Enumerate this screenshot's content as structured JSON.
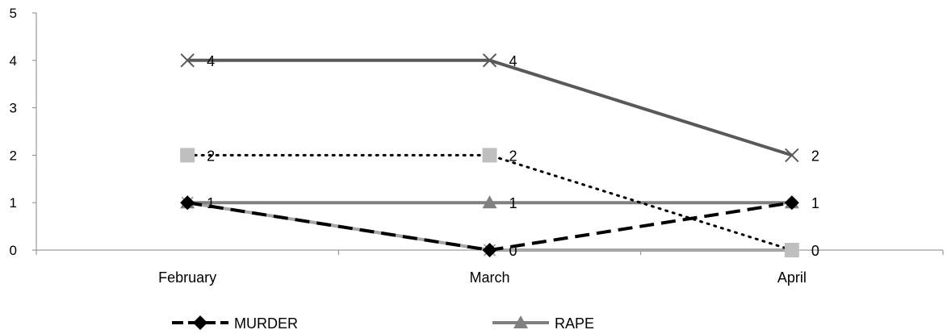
{
  "chart_data": {
    "type": "line",
    "title": "",
    "xlabel": "",
    "ylabel": "",
    "categories": [
      "February",
      "March",
      "April"
    ],
    "ylim": [
      0,
      5
    ],
    "yticks": [
      "0",
      "1",
      "2",
      "3",
      "4",
      "5"
    ],
    "grid": false,
    "legend_position": "bottom",
    "series": [
      {
        "name": "MURDER",
        "values": [
          1,
          0,
          1
        ],
        "color": "#000000",
        "line_style": "dashed",
        "marker": "diamond",
        "labels": [
          "",
          "",
          ""
        ]
      },
      {
        "name": "RAPE",
        "values": [
          1,
          1,
          1
        ],
        "color": "#808080",
        "line_style": "solid",
        "marker": "triangle",
        "labels": [
          "1",
          "1",
          "1"
        ]
      },
      {
        "values": [
          2,
          2,
          0
        ],
        "color": "#000000",
        "marker_color": "#bfbfbf",
        "line_style": "dotted",
        "marker": "square",
        "labels": [
          "2",
          "2",
          "0"
        ]
      },
      {
        "values": [
          4,
          4,
          2
        ],
        "color": "#595959",
        "line_style": "solid",
        "marker": "x",
        "labels": [
          "4",
          "4",
          "2"
        ]
      },
      {
        "values": [
          1,
          0,
          0
        ],
        "color": "#a6a6a6",
        "line_style": "solid",
        "marker": "star",
        "labels": [
          "",
          "0",
          ""
        ]
      }
    ]
  }
}
